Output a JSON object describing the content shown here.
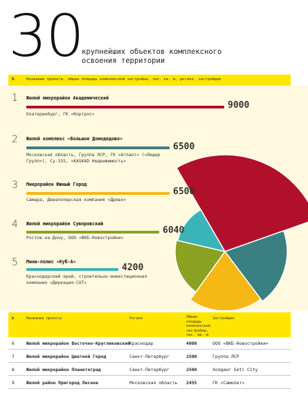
{
  "header": {
    "big_number": "30",
    "title_line1": "крупнейших объектов комплексного",
    "title_line2": "освоения территории"
  },
  "top_table_header": {
    "no": "№",
    "columns": "Название проекта, общая площадь комплексной застройки, тыс. кв. м, регион, застройщик"
  },
  "colors": {
    "accent_yellow": "#ffe600",
    "background_cream": "#fff9df",
    "red": "#b0102a",
    "teal": "#3a7f82",
    "orange": "#f5b814",
    "olive": "#8aa122",
    "cyan": "#3ab4b8"
  },
  "chart_data": {
    "type": "bar",
    "categories": [
      "Жилой микрорайон Академический",
      "Жилой комплекс «Большое Домодедово»",
      "Микрорайон Южный Город",
      "Жилой микрорайон Суворовский",
      "Мини-полис «Куб-А»"
    ],
    "values": [
      9000,
      6500,
      6500,
      6040,
      4200
    ],
    "xlim": [
      0,
      9000
    ],
    "grid": false,
    "legend": "none",
    "items": [
      {
        "rank": "1",
        "name": "Жилой микрорайон Академический",
        "value": 9000,
        "value_label": "9000",
        "desc": "Екатеринбург, ГК «Кортрос»",
        "color": "#b0102a"
      },
      {
        "rank": "2",
        "name": "Жилой комплекс «Большое Домодедово»",
        "value": 6500,
        "value_label": "6500",
        "desc": "Московская область, Группа ЛСР, ГК «Атлант» («Лидер Групп»), Су-155, «KASKAD Недвижимость»",
        "color": "#3a7f82"
      },
      {
        "rank": "3",
        "name": "Микрорайон Южный Город",
        "value": 6500,
        "value_label": "6500",
        "desc": "Самара, Девелоперская компания «Древо»",
        "color": "#f5b814"
      },
      {
        "rank": "4",
        "name": "Жилой микрорайон Суворовский",
        "value": 6040,
        "value_label": "6040",
        "desc": "Ростов-на-Дону, ООО «ВКБ-Новостройки»",
        "color": "#8aa122"
      },
      {
        "rank": "5",
        "name": "Мини-полис «Куб-А»",
        "value": 4200,
        "value_label": "4200",
        "desc": "Краснодарский край, строительно-инвестиционная компания «Дирекция-СОТ»",
        "color": "#3ab4b8"
      }
    ]
  },
  "bottom_table": {
    "headers": {
      "no": "№",
      "name": "Название проекта",
      "region": "Регион",
      "area": "Общая площадь комплексной застройки, тыс. кв. м",
      "developer": "Застройщик"
    },
    "rows": [
      {
        "no": "6",
        "name": "Жилой микрорайон Восточно-Кругликовский",
        "region": "Краснодар",
        "area": "4000",
        "developer": "ООО «ВКБ-Новостройки»"
      },
      {
        "no": "7",
        "name": "Жилой микрорайон Цветной Город",
        "region": "Санкт-Петербург",
        "area": "2500",
        "developer": "Группа ЛСР"
      },
      {
        "no": "8",
        "name": "Жилой микрорайон Планетоград",
        "region": "Санкт-Петербург",
        "area": "2500",
        "developer": "Холдинг Setl City"
      },
      {
        "no": "9",
        "name": "Жилой район Пригород Лесное",
        "region": "Московская область",
        "area": "2455",
        "developer": "ГК «Самолет»"
      }
    ]
  }
}
